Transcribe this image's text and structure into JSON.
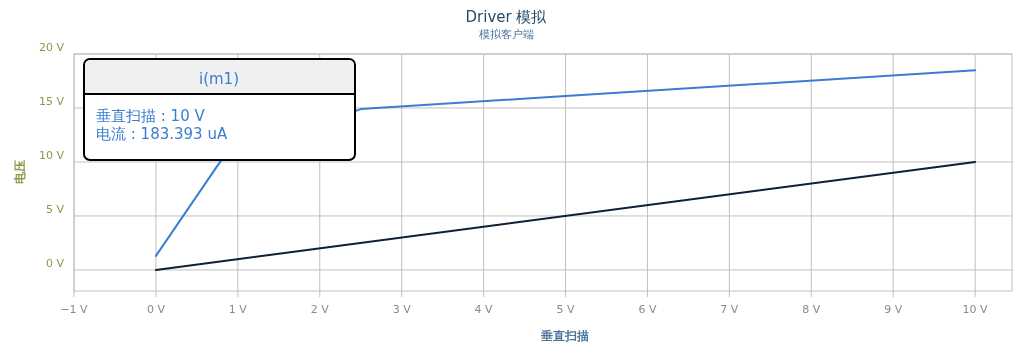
{
  "chart_data": {
    "type": "line",
    "title": "Driver 模拟",
    "subtitle": "模拟客户端",
    "xlabel": "垂直扫描",
    "ylabel": "电压",
    "annotations": [
      "i(m1)",
      "垂直扫描 : 10 V",
      "电流 : 183.393 uA"
    ],
    "series": [
      {
        "color": "#3b7dd0",
        "x": [
          0,
          0.8,
          2.5,
          5,
          7.5,
          10
        ],
        "values": [
          1.3,
          10.2,
          14.9,
          16.1,
          17.3,
          18.5
        ]
      },
      {
        "color": "#0d2035",
        "x": [
          0,
          10
        ],
        "values": [
          0,
          10
        ]
      }
    ],
    "xlim": [
      -1,
      10.45
    ],
    "ylim": [
      -1.95,
      20
    ],
    "xticks": [
      {
        "value": -1,
        "label": "−1 V"
      },
      {
        "value": 0,
        "label": "0 V"
      },
      {
        "value": 1,
        "label": "1 V"
      },
      {
        "value": 2,
        "label": "2 V"
      },
      {
        "value": 3,
        "label": "3 V"
      },
      {
        "value": 4,
        "label": "4 V"
      },
      {
        "value": 5,
        "label": "5 V"
      },
      {
        "value": 6,
        "label": "6 V"
      },
      {
        "value": 7,
        "label": "7 V"
      },
      {
        "value": 8,
        "label": "8 V"
      },
      {
        "value": 9,
        "label": "9 V"
      },
      {
        "value": 10,
        "label": "10 V"
      }
    ],
    "yticks": [
      {
        "value": 0,
        "label": "0 V"
      },
      {
        "value": 5,
        "label": "5 V"
      },
      {
        "value": 10,
        "label": "10 V"
      },
      {
        "value": 15,
        "label": "15 V"
      },
      {
        "value": 20,
        "label": "20 V"
      }
    ],
    "grid": true,
    "marker": "none",
    "line_style": "solid"
  }
}
